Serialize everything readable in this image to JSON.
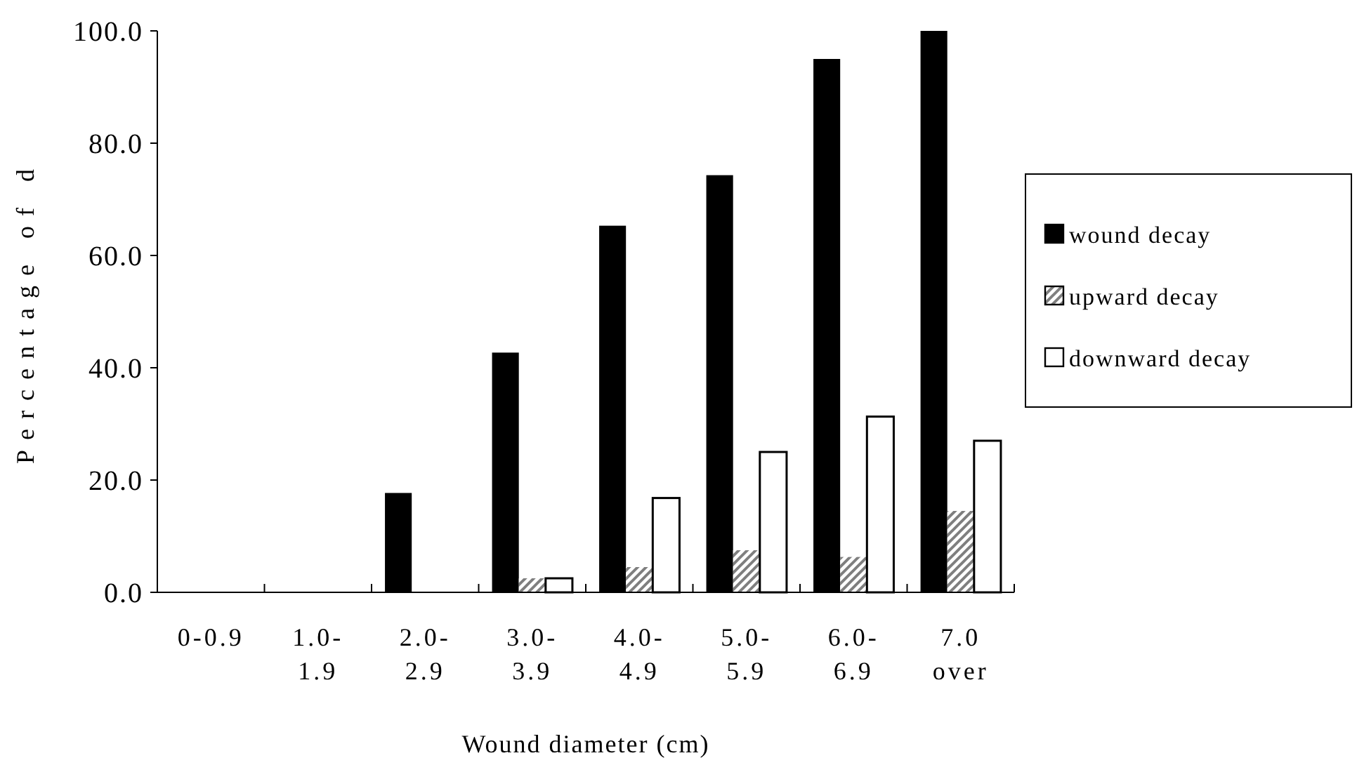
{
  "chart_data": {
    "type": "bar",
    "xlabel": "Wound diameter (cm)",
    "ylabel": "Percentage of d",
    "categories": [
      "0-0.9",
      "1.0-\n1.9",
      "2.0-\n2.9",
      "3.0-\n3.9",
      "4.0-\n4.9",
      "5.0-\n5.9",
      "6.0-\n6.9",
      "7.0\nover"
    ],
    "series": [
      {
        "name": "wound decay",
        "color": "#000000",
        "values": [
          0,
          0,
          17.7,
          42.7,
          65.3,
          74.3,
          95,
          100
        ]
      },
      {
        "name": "upward decay",
        "color": "#7f7f7f",
        "values": [
          0,
          0,
          0,
          2.5,
          4.5,
          7.5,
          6.3,
          14.5
        ]
      },
      {
        "name": "downward decay",
        "color": "#ffffff",
        "values": [
          0,
          0,
          0,
          2.5,
          16.8,
          25,
          31.3,
          27
        ]
      }
    ],
    "ylim": [
      0,
      100
    ],
    "yticks": [
      {
        "value": 0,
        "label": "0.0"
      },
      {
        "value": 20,
        "label": "20.0"
      },
      {
        "value": 40,
        "label": "40.0"
      },
      {
        "value": 60,
        "label": "60.0"
      },
      {
        "value": 80,
        "label": "80.0"
      },
      {
        "value": 100,
        "label": "100.0"
      }
    ],
    "grid": false,
    "legend": "right"
  }
}
